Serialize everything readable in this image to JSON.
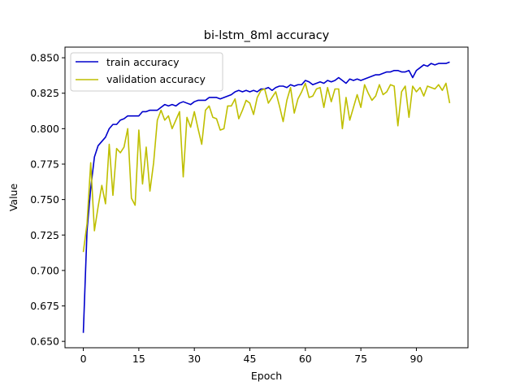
{
  "chart_data": {
    "type": "line",
    "title": "bi-lstm_8ml accuracy",
    "xlabel": "Epoch",
    "ylabel": "Value",
    "xlim": [
      -4.95,
      103.95
    ],
    "ylim": [
      0.6455,
      0.8575
    ],
    "xticks": [
      0,
      15,
      30,
      45,
      60,
      75,
      90
    ],
    "yticks": [
      0.65,
      0.675,
      0.7,
      0.725,
      0.75,
      0.775,
      0.8,
      0.825,
      0.85
    ],
    "ytick_labels": [
      "0.650",
      "0.675",
      "0.700",
      "0.725",
      "0.750",
      "0.775",
      "0.800",
      "0.825",
      "0.850"
    ],
    "grid": false,
    "legend_position": "top-left",
    "series": [
      {
        "name": "train accuracy",
        "color": "#0000cc",
        "values": [
          0.656,
          0.728,
          0.758,
          0.78,
          0.788,
          0.791,
          0.794,
          0.8,
          0.803,
          0.803,
          0.806,
          0.807,
          0.809,
          0.809,
          0.809,
          0.809,
          0.812,
          0.812,
          0.813,
          0.813,
          0.813,
          0.815,
          0.817,
          0.816,
          0.817,
          0.816,
          0.818,
          0.819,
          0.818,
          0.817,
          0.819,
          0.82,
          0.82,
          0.82,
          0.822,
          0.822,
          0.822,
          0.821,
          0.822,
          0.823,
          0.824,
          0.826,
          0.827,
          0.826,
          0.827,
          0.826,
          0.827,
          0.826,
          0.828,
          0.828,
          0.829,
          0.827,
          0.829,
          0.83,
          0.83,
          0.829,
          0.831,
          0.83,
          0.831,
          0.831,
          0.834,
          0.833,
          0.831,
          0.832,
          0.833,
          0.832,
          0.834,
          0.833,
          0.834,
          0.836,
          0.834,
          0.832,
          0.835,
          0.834,
          0.835,
          0.834,
          0.835,
          0.836,
          0.837,
          0.838,
          0.838,
          0.839,
          0.84,
          0.84,
          0.841,
          0.841,
          0.84,
          0.84,
          0.841,
          0.836,
          0.841,
          0.843,
          0.845,
          0.844,
          0.846,
          0.845,
          0.846,
          0.846,
          0.846,
          0.847
        ]
      },
      {
        "name": "validation accuracy",
        "color": "#bfbf00",
        "values": [
          0.713,
          0.733,
          0.776,
          0.728,
          0.745,
          0.76,
          0.747,
          0.789,
          0.753,
          0.786,
          0.783,
          0.787,
          0.8,
          0.751,
          0.746,
          0.799,
          0.761,
          0.787,
          0.756,
          0.776,
          0.806,
          0.813,
          0.806,
          0.809,
          0.8,
          0.806,
          0.812,
          0.766,
          0.808,
          0.801,
          0.812,
          0.8,
          0.789,
          0.813,
          0.816,
          0.808,
          0.807,
          0.799,
          0.8,
          0.816,
          0.816,
          0.821,
          0.807,
          0.813,
          0.82,
          0.818,
          0.81,
          0.822,
          0.827,
          0.828,
          0.818,
          0.822,
          0.826,
          0.816,
          0.805,
          0.82,
          0.829,
          0.811,
          0.821,
          0.826,
          0.832,
          0.822,
          0.823,
          0.828,
          0.829,
          0.815,
          0.829,
          0.819,
          0.828,
          0.828,
          0.8,
          0.822,
          0.806,
          0.815,
          0.824,
          0.815,
          0.831,
          0.825,
          0.82,
          0.823,
          0.831,
          0.824,
          0.826,
          0.831,
          0.83,
          0.802,
          0.826,
          0.83,
          0.808,
          0.83,
          0.826,
          0.829,
          0.823,
          0.83,
          0.829,
          0.828,
          0.831,
          0.827,
          0.832,
          0.818
        ]
      }
    ]
  }
}
